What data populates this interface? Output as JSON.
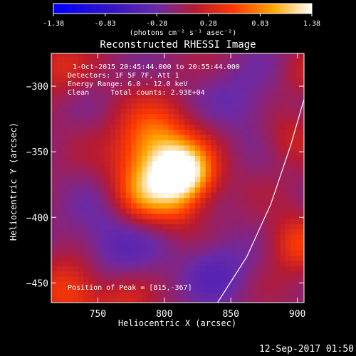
{
  "chart_data": {
    "type": "heatmap",
    "title": "Reconstructed RHESSI Image",
    "xlabel": "Heliocentric X (arcsec)",
    "ylabel": "Heliocentric Y (arcsec)",
    "xlim": [
      715,
      905
    ],
    "ylim": [
      -465,
      -275
    ],
    "x_ticks": [
      750,
      800,
      850,
      900
    ],
    "y_ticks": [
      -300,
      -350,
      -400,
      -450
    ],
    "colorbar": {
      "min": -1.38,
      "max": 1.38,
      "ticks": [
        "-1.38",
        "-0.83",
        "-0.28",
        "0.28",
        "0.83",
        "1.38"
      ],
      "unit_label": "(photons cm⁻² s⁻¹ asec⁻²)"
    },
    "info_lines": [
      "1-Oct-2015 20:45:44.000 to 20:55:44.000",
      "Detectors: 1F 5F 7F, Att 1",
      "Energy Range: 6.0 - 12.0 keV",
      "Clean     Total counts: 2.93E+04"
    ],
    "peak_text": "Position of Peak = [815,-367]",
    "peak": {
      "x": 815,
      "y": -367,
      "value": 1.38
    },
    "sources": [
      {
        "x": 815,
        "y": -367,
        "amp": 1.25,
        "sigma": 15
      },
      {
        "x": 795,
        "y": -360,
        "amp": 0.85,
        "sigma": 22
      },
      {
        "x": 785,
        "y": -385,
        "amp": 0.55,
        "sigma": 15
      },
      {
        "x": 790,
        "y": -335,
        "amp": 0.45,
        "sigma": 18
      },
      {
        "x": 810,
        "y": -395,
        "amp": 0.25,
        "sigma": 12
      },
      {
        "x": 730,
        "y": -455,
        "amp": 0.65,
        "sigma": 18
      },
      {
        "x": 770,
        "y": -465,
        "amp": 0.35,
        "sigma": 14
      },
      {
        "x": 900,
        "y": -420,
        "amp": 0.55,
        "sigma": 15
      },
      {
        "x": 895,
        "y": -340,
        "amp": 0.3,
        "sigma": 14
      },
      {
        "x": 905,
        "y": -290,
        "amp": 0.25,
        "sigma": 12
      },
      {
        "x": 720,
        "y": -285,
        "amp": 0.35,
        "sigma": 15
      },
      {
        "x": 760,
        "y": -420,
        "amp": -0.35,
        "sigma": 25
      },
      {
        "x": 860,
        "y": -310,
        "amp": -0.25,
        "sigma": 20
      },
      {
        "x": 840,
        "y": -440,
        "amp": -0.35,
        "sigma": 18
      }
    ],
    "limb_curve": [
      [
        840,
        -465
      ],
      [
        862,
        -430
      ],
      [
        880,
        -390
      ],
      [
        895,
        -345
      ],
      [
        905,
        -310
      ]
    ],
    "grid": false
  },
  "footer": {
    "timestamp": "12-Sep-2017 01:50"
  },
  "colors": {
    "background": "#000000",
    "text": "#ffffff",
    "limb_line": "#ffffff"
  }
}
